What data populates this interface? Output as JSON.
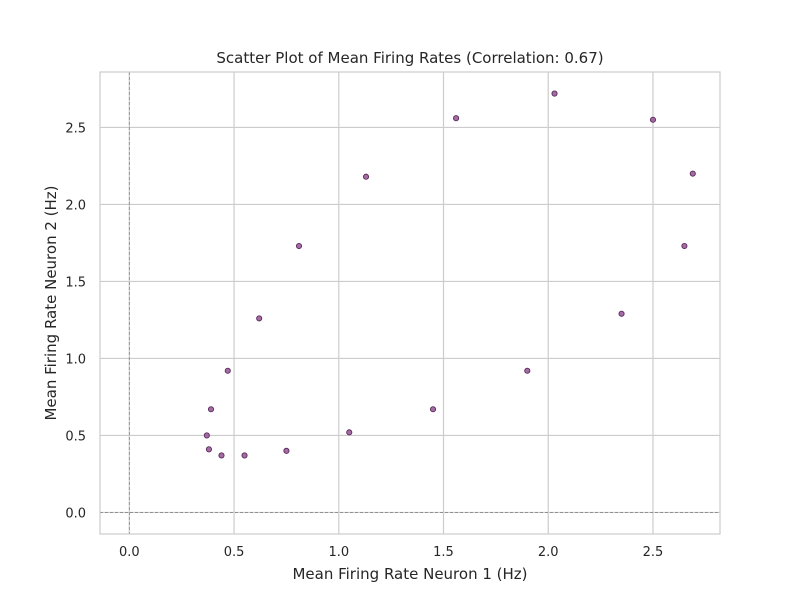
{
  "chart_data": {
    "type": "scatter",
    "title": "Scatter Plot of Mean Firing Rates (Correlation: 0.67)",
    "xlabel": "Mean Firing Rate Neuron 1 (Hz)",
    "ylabel": "Mean Firing Rate Neuron 2 (Hz)",
    "xlim": [
      -0.14,
      2.82
    ],
    "ylim": [
      -0.14,
      2.86
    ],
    "xticks": [
      "0.0",
      "0.5",
      "1.0",
      "1.5",
      "2.0",
      "2.5"
    ],
    "yticks": [
      "0.0",
      "0.5",
      "1.0",
      "1.5",
      "2.0",
      "2.5"
    ],
    "grid": true,
    "reference_lines": {
      "x": 0,
      "y": 0
    },
    "colors": {
      "marker_fill": "#9b5b9b",
      "marker_edge": "#5a2a5a",
      "grid": "#cccccc",
      "reference": "#888888"
    },
    "points": [
      {
        "x": 0.37,
        "y": 0.5
      },
      {
        "x": 0.38,
        "y": 0.41
      },
      {
        "x": 0.39,
        "y": 0.67
      },
      {
        "x": 0.44,
        "y": 0.37
      },
      {
        "x": 0.47,
        "y": 0.92
      },
      {
        "x": 0.55,
        "y": 0.37
      },
      {
        "x": 0.62,
        "y": 1.26
      },
      {
        "x": 0.75,
        "y": 0.4
      },
      {
        "x": 0.81,
        "y": 1.73
      },
      {
        "x": 1.05,
        "y": 0.52
      },
      {
        "x": 1.13,
        "y": 2.18
      },
      {
        "x": 1.45,
        "y": 0.67
      },
      {
        "x": 1.56,
        "y": 2.56
      },
      {
        "x": 1.9,
        "y": 0.92
      },
      {
        "x": 2.03,
        "y": 2.72
      },
      {
        "x": 2.35,
        "y": 1.29
      },
      {
        "x": 2.5,
        "y": 2.55
      },
      {
        "x": 2.65,
        "y": 1.73
      },
      {
        "x": 2.69,
        "y": 2.2
      }
    ]
  }
}
